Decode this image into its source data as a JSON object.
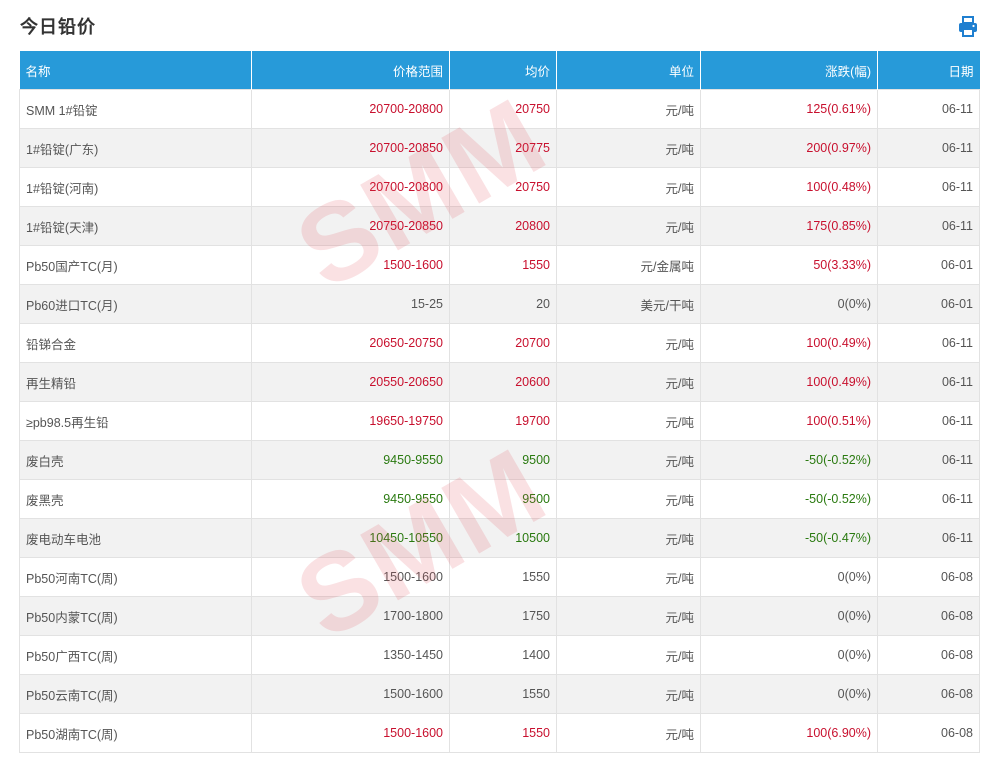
{
  "page": {
    "title": "今日铅价"
  },
  "colors": {
    "header_bg": "#279ad9",
    "up": "#c8102e",
    "down": "#2a7a10",
    "flat": "#555555",
    "watermark": "#e14650"
  },
  "icons": {
    "print": "printer-icon"
  },
  "watermark": "SMM",
  "table": {
    "headers": {
      "name": "名称",
      "range": "价格范围",
      "avg": "均价",
      "unit": "单位",
      "change": "涨跌(幅)",
      "date": "日期"
    },
    "rows": [
      {
        "name": "SMM 1#铅锭",
        "range": "20700-20800",
        "avg": "20750",
        "unit": "元/吨",
        "change": "125(0.61%)",
        "date": "06-11",
        "trend": "up"
      },
      {
        "name": "1#铅锭(广东)",
        "range": "20700-20850",
        "avg": "20775",
        "unit": "元/吨",
        "change": "200(0.97%)",
        "date": "06-11",
        "trend": "up"
      },
      {
        "name": "1#铅锭(河南)",
        "range": "20700-20800",
        "avg": "20750",
        "unit": "元/吨",
        "change": "100(0.48%)",
        "date": "06-11",
        "trend": "up"
      },
      {
        "name": "1#铅锭(天津)",
        "range": "20750-20850",
        "avg": "20800",
        "unit": "元/吨",
        "change": "175(0.85%)",
        "date": "06-11",
        "trend": "up"
      },
      {
        "name": "Pb50国产TC(月)",
        "range": "1500-1600",
        "avg": "1550",
        "unit": "元/金属吨",
        "change": "50(3.33%)",
        "date": "06-01",
        "trend": "up"
      },
      {
        "name": "Pb60进口TC(月)",
        "range": "15-25",
        "avg": "20",
        "unit": "美元/干吨",
        "change": "0(0%)",
        "date": "06-01",
        "trend": "flat"
      },
      {
        "name": "铅锑合金",
        "range": "20650-20750",
        "avg": "20700",
        "unit": "元/吨",
        "change": "100(0.49%)",
        "date": "06-11",
        "trend": "up"
      },
      {
        "name": "再生精铅",
        "range": "20550-20650",
        "avg": "20600",
        "unit": "元/吨",
        "change": "100(0.49%)",
        "date": "06-11",
        "trend": "up"
      },
      {
        "name": "≥pb98.5再生铅",
        "range": "19650-19750",
        "avg": "19700",
        "unit": "元/吨",
        "change": "100(0.51%)",
        "date": "06-11",
        "trend": "up"
      },
      {
        "name": "废白壳",
        "range": "9450-9550",
        "avg": "9500",
        "unit": "元/吨",
        "change": "-50(-0.52%)",
        "date": "06-11",
        "trend": "down"
      },
      {
        "name": "废黑壳",
        "range": "9450-9550",
        "avg": "9500",
        "unit": "元/吨",
        "change": "-50(-0.52%)",
        "date": "06-11",
        "trend": "down"
      },
      {
        "name": "废电动车电池",
        "range": "10450-10550",
        "avg": "10500",
        "unit": "元/吨",
        "change": "-50(-0.47%)",
        "date": "06-11",
        "trend": "down"
      },
      {
        "name": "Pb50河南TC(周)",
        "range": "1500-1600",
        "avg": "1550",
        "unit": "元/吨",
        "change": "0(0%)",
        "date": "06-08",
        "trend": "flat"
      },
      {
        "name": "Pb50内蒙TC(周)",
        "range": "1700-1800",
        "avg": "1750",
        "unit": "元/吨",
        "change": "0(0%)",
        "date": "06-08",
        "trend": "flat"
      },
      {
        "name": "Pb50广西TC(周)",
        "range": "1350-1450",
        "avg": "1400",
        "unit": "元/吨",
        "change": "0(0%)",
        "date": "06-08",
        "trend": "flat"
      },
      {
        "name": "Pb50云南TC(周)",
        "range": "1500-1600",
        "avg": "1550",
        "unit": "元/吨",
        "change": "0(0%)",
        "date": "06-08",
        "trend": "flat"
      },
      {
        "name": "Pb50湖南TC(周)",
        "range": "1500-1600",
        "avg": "1550",
        "unit": "元/吨",
        "change": "100(6.90%)",
        "date": "06-08",
        "trend": "up"
      }
    ]
  }
}
